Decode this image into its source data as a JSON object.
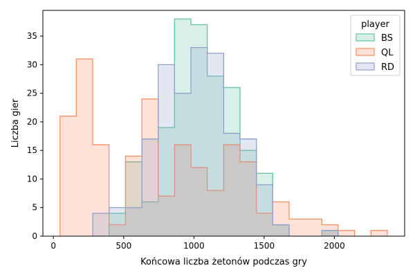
{
  "chart_data": {
    "type": "histogram",
    "xlabel": "Końcowa liczba żetonów podczas gry",
    "ylabel": "Liczba gier",
    "xlim": [
      -75,
      2500
    ],
    "ylim": [
      0,
      39.5
    ],
    "xticks": [
      0,
      500,
      1000,
      1500,
      2000
    ],
    "yticks": [
      0,
      5,
      10,
      15,
      20,
      25,
      30,
      35
    ],
    "grid": false,
    "bin_edges": [
      47,
      163,
      280,
      396,
      513,
      630,
      746,
      862,
      979,
      1095,
      1212,
      1328,
      1445,
      1561,
      1678,
      1794,
      1911,
      2027,
      2144,
      2260,
      2377
    ],
    "legend": {
      "title": "player",
      "placement": "top-right"
    },
    "series": [
      {
        "name": "BS",
        "color": "#66c2a5",
        "values": [
          0,
          0,
          0,
          4,
          13,
          6,
          19,
          38,
          37,
          28,
          26,
          15,
          11,
          2,
          0,
          0,
          1,
          0,
          0,
          0
        ]
      },
      {
        "name": "QL",
        "color": "#fc8d62",
        "values": [
          21,
          31,
          16,
          2,
          14,
          24,
          7,
          16,
          12,
          8,
          16,
          13,
          4,
          6,
          3,
          3,
          2,
          1,
          0,
          1
        ]
      },
      {
        "name": "RD",
        "color": "#8da0cb",
        "values": [
          0,
          0,
          4,
          5,
          5,
          17,
          30,
          25,
          33,
          32,
          18,
          17,
          9,
          2,
          0,
          0,
          1,
          0,
          0,
          0
        ]
      }
    ]
  }
}
